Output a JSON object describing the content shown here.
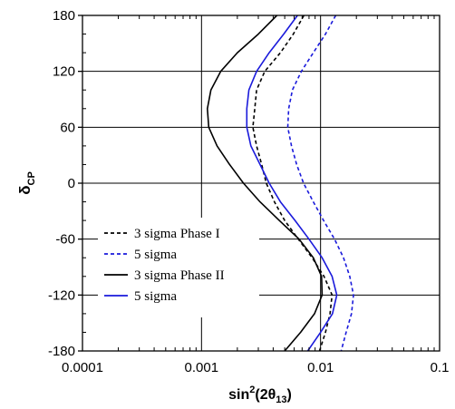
{
  "chart_data": {
    "type": "line",
    "title": "",
    "xlabel": {
      "base": "sin",
      "sup": "2",
      "open": "(2",
      "theta": "θ",
      "sub": "13",
      "close": ")"
    },
    "ylabel": {
      "base": "δ",
      "sub": "CP"
    },
    "x_scale": "log",
    "xlim": [
      0.0001,
      0.1
    ],
    "ylim": [
      -180,
      180
    ],
    "x_ticks": [
      0.0001,
      0.001,
      0.01,
      0.1
    ],
    "x_tick_labels": [
      "0.0001",
      "0.001",
      "0.01",
      "0.1"
    ],
    "y_ticks": [
      180,
      120,
      60,
      0,
      -60,
      -120,
      -180
    ],
    "y_tick_labels": [
      "180",
      "120",
      "60",
      "0",
      "-60",
      "-120",
      "-180"
    ],
    "grid": true,
    "legend_position": "lower-left",
    "colors": {
      "black": "#000000",
      "blue": "#1a1adb"
    },
    "series": [
      {
        "name": "3 sigma Phase I",
        "color": "#000000",
        "dash": "dashed",
        "points": [
          [
            0.00725,
            180
          ],
          [
            0.0059,
            160
          ],
          [
            0.0046,
            140
          ],
          [
            0.0034,
            120
          ],
          [
            0.0029,
            100
          ],
          [
            0.0028,
            80
          ],
          [
            0.0027,
            60
          ],
          [
            0.0029,
            40
          ],
          [
            0.0032,
            20
          ],
          [
            0.0035,
            0
          ],
          [
            0.0041,
            -20
          ],
          [
            0.005,
            -40
          ],
          [
            0.0065,
            -60
          ],
          [
            0.0085,
            -80
          ],
          [
            0.0107,
            -100
          ],
          [
            0.0125,
            -120
          ],
          [
            0.012,
            -140
          ],
          [
            0.011,
            -160
          ],
          [
            0.0098,
            -180
          ]
        ]
      },
      {
        "name": "5 sigma",
        "color": "#1a1adb",
        "dash": "dashed",
        "points": [
          [
            0.0134,
            180
          ],
          [
            0.011,
            160
          ],
          [
            0.0087,
            140
          ],
          [
            0.0069,
            120
          ],
          [
            0.0058,
            100
          ],
          [
            0.0054,
            80
          ],
          [
            0.0053,
            60
          ],
          [
            0.0057,
            40
          ],
          [
            0.0063,
            20
          ],
          [
            0.0072,
            0
          ],
          [
            0.0087,
            -20
          ],
          [
            0.0106,
            -40
          ],
          [
            0.0131,
            -60
          ],
          [
            0.0156,
            -80
          ],
          [
            0.0176,
            -100
          ],
          [
            0.0189,
            -120
          ],
          [
            0.0182,
            -140
          ],
          [
            0.0164,
            -160
          ],
          [
            0.0149,
            -180
          ]
        ]
      },
      {
        "name": "3 sigma Phase II",
        "color": "#000000",
        "dash": "solid",
        "points": [
          [
            0.0043,
            180
          ],
          [
            0.003,
            160
          ],
          [
            0.002,
            140
          ],
          [
            0.00145,
            120
          ],
          [
            0.0012,
            100
          ],
          [
            0.00112,
            80
          ],
          [
            0.00115,
            60
          ],
          [
            0.00135,
            40
          ],
          [
            0.00172,
            20
          ],
          [
            0.00225,
            0
          ],
          [
            0.0031,
            -20
          ],
          [
            0.0045,
            -40
          ],
          [
            0.0066,
            -60
          ],
          [
            0.0087,
            -80
          ],
          [
            0.0102,
            -100
          ],
          [
            0.0103,
            -120
          ],
          [
            0.0089,
            -140
          ],
          [
            0.0068,
            -160
          ],
          [
            0.005,
            -180
          ]
        ]
      },
      {
        "name": "5 sigma",
        "color": "#1a1adb",
        "dash": "solid",
        "points": [
          [
            0.0064,
            180
          ],
          [
            0.0049,
            160
          ],
          [
            0.0037,
            140
          ],
          [
            0.0029,
            120
          ],
          [
            0.0025,
            100
          ],
          [
            0.0024,
            80
          ],
          [
            0.0024,
            60
          ],
          [
            0.0026,
            40
          ],
          [
            0.0031,
            20
          ],
          [
            0.0037,
            0
          ],
          [
            0.0046,
            -20
          ],
          [
            0.0061,
            -40
          ],
          [
            0.008,
            -60
          ],
          [
            0.0103,
            -80
          ],
          [
            0.0125,
            -100
          ],
          [
            0.0137,
            -120
          ],
          [
            0.0126,
            -140
          ],
          [
            0.01,
            -160
          ],
          [
            0.0078,
            -180
          ]
        ]
      }
    ]
  }
}
